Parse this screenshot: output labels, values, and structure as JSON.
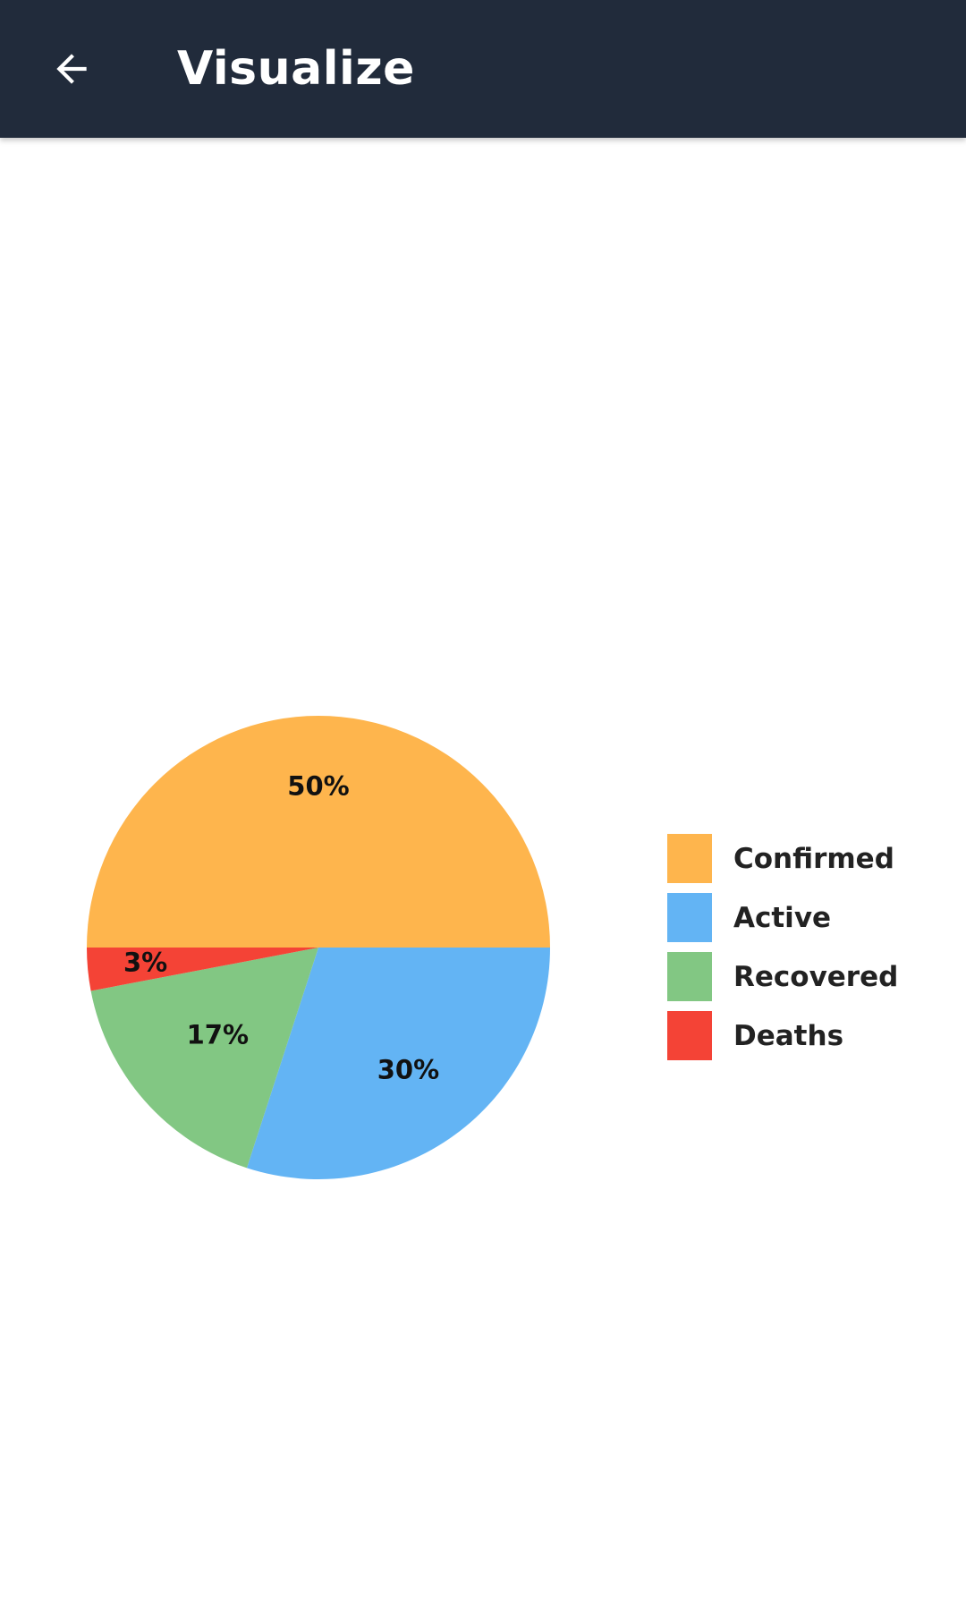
{
  "app_bar": {
    "title": "Visualize",
    "back_icon": "arrow-back-icon",
    "background": "#212b3b"
  },
  "chart_data": {
    "type": "pie",
    "title": "",
    "start_angle_deg": 180,
    "slices": [
      {
        "name": "Confirmed",
        "value": 50,
        "label": "50%",
        "color": "#feb54d"
      },
      {
        "name": "Active",
        "value": 30,
        "label": "30%",
        "color": "#63b4f4"
      },
      {
        "name": "Recovered",
        "value": 17,
        "label": "17%",
        "color": "#82c783"
      },
      {
        "name": "Deaths",
        "value": 3,
        "label": "3%",
        "color": "#f44336"
      }
    ],
    "legend_position": "right"
  }
}
